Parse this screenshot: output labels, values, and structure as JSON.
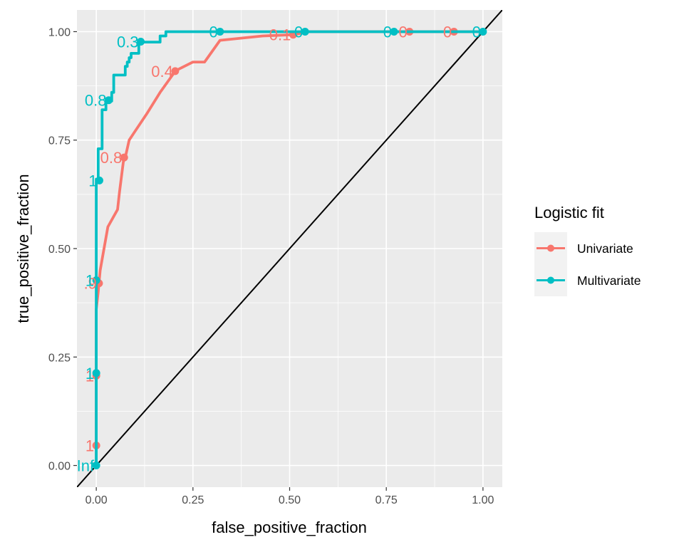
{
  "chart_data": {
    "type": "line",
    "title": "",
    "xlabel": "false_positive_fraction",
    "ylabel": "true_positive_fraction",
    "xlim": [
      -0.05,
      1.05
    ],
    "ylim": [
      -0.05,
      1.05
    ],
    "x_ticks": [
      "0.00",
      "0.25",
      "0.50",
      "0.75",
      "1.00"
    ],
    "y_ticks": [
      "0.00",
      "0.25",
      "0.50",
      "0.75",
      "1.00"
    ],
    "x_tick_values": [
      0,
      0.25,
      0.5,
      0.75,
      1.0
    ],
    "y_tick_values": [
      0,
      0.25,
      0.5,
      0.75,
      1.0
    ],
    "grid": true,
    "legend": {
      "title": "Logistic fit",
      "position": "right"
    },
    "reference_line": {
      "from": [
        0,
        0
      ],
      "to": [
        1,
        1
      ],
      "color": "#000000"
    },
    "series": [
      {
        "name": "Univariate",
        "color": "#F8766D",
        "curve": [
          [
            0,
            0
          ],
          [
            0,
            0.05
          ],
          [
            0,
            0.21
          ],
          [
            0,
            0.36
          ],
          [
            0.005,
            0.4
          ],
          [
            0.01,
            0.45
          ],
          [
            0.02,
            0.5
          ],
          [
            0.03,
            0.55
          ],
          [
            0.055,
            0.59
          ],
          [
            0.06,
            0.63
          ],
          [
            0.07,
            0.7
          ],
          [
            0.075,
            0.71
          ],
          [
            0.085,
            0.75
          ],
          [
            0.1,
            0.77
          ],
          [
            0.13,
            0.81
          ],
          [
            0.165,
            0.86
          ],
          [
            0.205,
            0.91
          ],
          [
            0.25,
            0.93
          ],
          [
            0.28,
            0.93
          ],
          [
            0.32,
            0.98
          ],
          [
            0.43,
            0.99
          ],
          [
            0.51,
            0.993
          ],
          [
            0.55,
            1.0
          ],
          [
            0.81,
            1.0
          ],
          [
            0.92,
            1.0
          ],
          [
            1.0,
            1.0
          ]
        ],
        "points": [
          {
            "x": 0.0,
            "y": 0.046,
            "label": "1"
          },
          {
            "x": 0.0,
            "y": 0.207,
            "label": "1"
          },
          {
            "x": 0.007,
            "y": 0.42,
            "label": ".9"
          },
          {
            "x": 0.072,
            "y": 0.71,
            "label": "0.8"
          },
          {
            "x": 0.204,
            "y": 0.909,
            "label": "0.4"
          },
          {
            "x": 0.509,
            "y": 0.993,
            "label": "0.1"
          },
          {
            "x": 0.81,
            "y": 1.0,
            "label": "0"
          },
          {
            "x": 0.925,
            "y": 1.0,
            "label": "0"
          }
        ]
      },
      {
        "name": "Multivariate",
        "color": "#00BFC4",
        "curve": [
          [
            0,
            0
          ],
          [
            0,
            0.21
          ],
          [
            0,
            0.43
          ],
          [
            0,
            0.66
          ],
          [
            0.005,
            0.66
          ],
          [
            0.005,
            0.73
          ],
          [
            0.015,
            0.73
          ],
          [
            0.015,
            0.82
          ],
          [
            0.025,
            0.82
          ],
          [
            0.025,
            0.84
          ],
          [
            0.04,
            0.84
          ],
          [
            0.04,
            0.86
          ],
          [
            0.045,
            0.86
          ],
          [
            0.045,
            0.9
          ],
          [
            0.075,
            0.9
          ],
          [
            0.075,
            0.92
          ],
          [
            0.08,
            0.92
          ],
          [
            0.08,
            0.93
          ],
          [
            0.085,
            0.93
          ],
          [
            0.085,
            0.94
          ],
          [
            0.09,
            0.94
          ],
          [
            0.09,
            0.95
          ],
          [
            0.11,
            0.95
          ],
          [
            0.11,
            0.976
          ],
          [
            0.165,
            0.976
          ],
          [
            0.165,
            0.99
          ],
          [
            0.18,
            0.99
          ],
          [
            0.18,
            1.0
          ],
          [
            0.32,
            1.0
          ],
          [
            0.54,
            1.0
          ],
          [
            0.77,
            1.0
          ],
          [
            1.0,
            1.0
          ]
        ],
        "points": [
          {
            "x": 0.0,
            "y": 0.0,
            "label": "Inf"
          },
          {
            "x": 0.0,
            "y": 0.213,
            "label": "1"
          },
          {
            "x": 0.0,
            "y": 0.427,
            "label": "1"
          },
          {
            "x": 0.008,
            "y": 0.657,
            "label": "1"
          },
          {
            "x": 0.032,
            "y": 0.842,
            "label": "0.8"
          },
          {
            "x": 0.115,
            "y": 0.977,
            "label": "0.3"
          },
          {
            "x": 0.32,
            "y": 1.0,
            "label": "0"
          },
          {
            "x": 0.54,
            "y": 1.0,
            "label": "0"
          },
          {
            "x": 0.77,
            "y": 1.0,
            "label": "0"
          },
          {
            "x": 1.0,
            "y": 1.0,
            "label": "0"
          }
        ]
      }
    ]
  }
}
